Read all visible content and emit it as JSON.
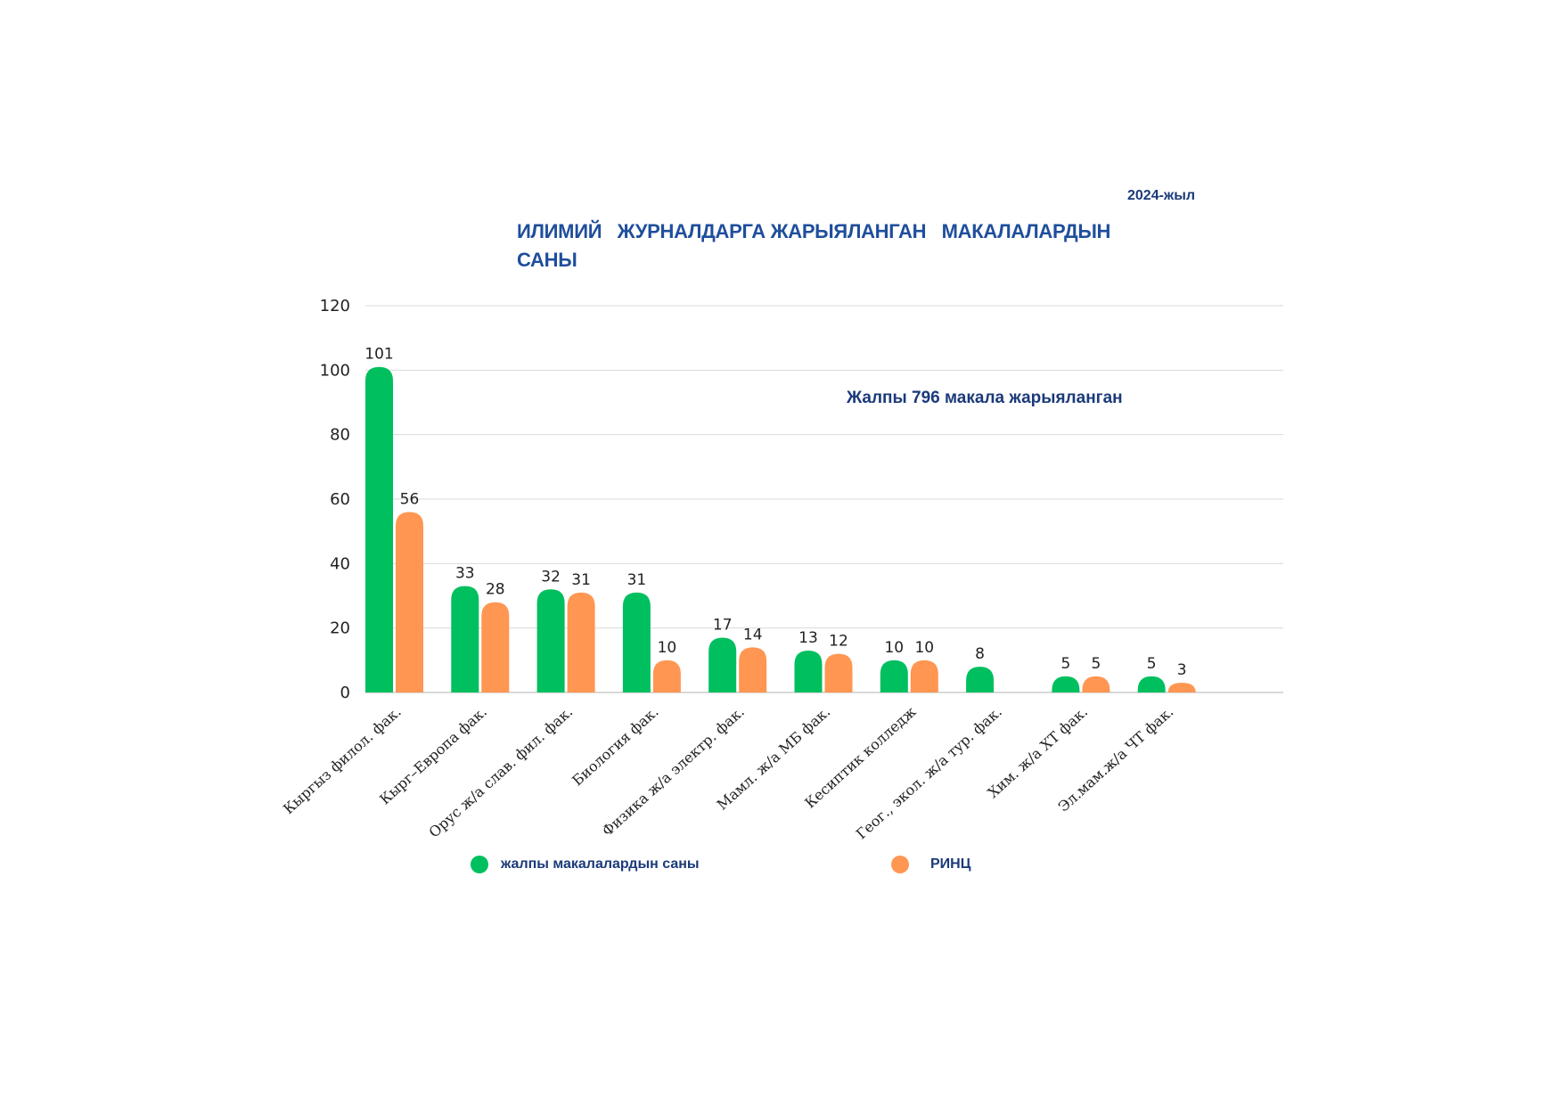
{
  "year_label": "2024-жыл",
  "title": "ИЛИМИЙ   ЖУРНАЛДАРГА ЖАРЫЯЛАНГАН   МАКАЛАЛАРДЫН САНЫ",
  "annotation": "Жалпы 796 макала жарыяланган",
  "colors": {
    "series1": "#00bf5f",
    "series2": "#ff9651",
    "grid": "#d9d9d9",
    "text": "#1b3a7a"
  },
  "chart_data": {
    "type": "bar",
    "title": "ИЛИМИЙ   ЖУРНАЛДАРГА ЖАРЫЯЛАНГАН   МАКАЛАЛАРДЫН САНЫ",
    "categories": [
      "Кыргыз филол. фак.",
      "Кырг–Европа фак.",
      "Орус ж/а слав. фил. фак.",
      "Биология фак.",
      "Физика ж/а электр. фак.",
      "Мамл. ж/а МБ фак.",
      "Кесиптик колледж",
      "Геог., экол. ж/а тур. фак.",
      "Хим. ж/а ХТ фак.",
      "Эл.мам.ж/а ЧТ фак."
    ],
    "series": [
      {
        "name": "жалпы макалалардын саны",
        "values": [
          101,
          33,
          32,
          31,
          17,
          13,
          10,
          8,
          5,
          5
        ]
      },
      {
        "name": "РИНЦ",
        "values": [
          56,
          28,
          31,
          10,
          14,
          12,
          10,
          null,
          5,
          3
        ]
      }
    ],
    "yticks": [
      0,
      20,
      40,
      60,
      80,
      100,
      120
    ],
    "ylim": [
      0,
      120
    ],
    "grid": true,
    "legend_position": "bottom"
  }
}
